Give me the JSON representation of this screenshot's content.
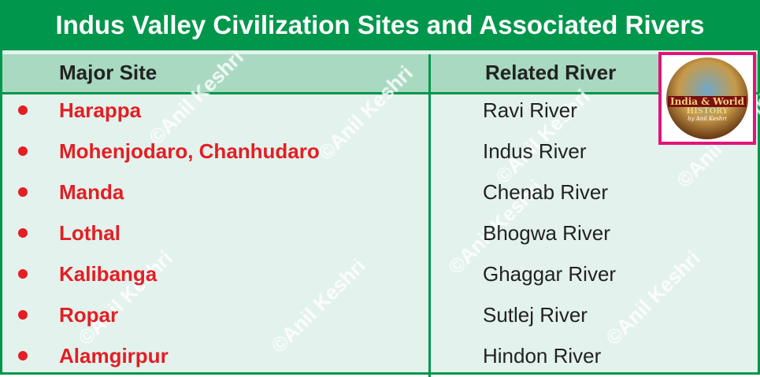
{
  "title": "Indus Valley Civilization Sites and Associated Rivers",
  "columns": [
    "Major Site",
    "Related River"
  ],
  "rows": [
    {
      "site": "Harappa",
      "river": "Ravi River"
    },
    {
      "site": "Mohenjodaro, Chanhudaro",
      "river": "Indus River"
    },
    {
      "site": "Manda",
      "river": "Chenab River"
    },
    {
      "site": "Lothal",
      "river": "Bhogwa River"
    },
    {
      "site": "Kalibanga",
      "river": "Ghaggar River"
    },
    {
      "site": "Ropar",
      "river": "Sutlej River"
    },
    {
      "site": "Alamgirpur",
      "river": "Hindon River"
    }
  ],
  "logo": {
    "line1": "India & World",
    "line2": "HISTORY",
    "line3": "by Anil Keshri"
  },
  "watermark": "©Anil Keshri",
  "colors": {
    "header_green": "#00964b",
    "column_header_bg": "#a9d9c1",
    "body_bg": "#e3f2ec",
    "site_red": "#e31e24",
    "logo_border": "#e0157a"
  }
}
